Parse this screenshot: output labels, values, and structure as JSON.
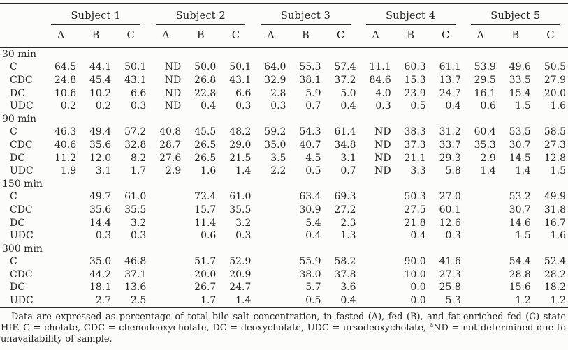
{
  "table": {
    "subjects": [
      "Subject 1",
      "Subject 2",
      "Subject 3",
      "Subject 4",
      "Subject 5"
    ],
    "conditions": [
      "A",
      "B",
      "C"
    ],
    "sections": [
      {
        "time": "30 min",
        "rows": [
          {
            "label": "C",
            "values": [
              "64.5",
              "44.1",
              "50.1",
              "ND",
              "50.0",
              "50.1",
              "64.0",
              "55.3",
              "57.4",
              "11.1",
              "60.3",
              "61.1",
              "53.9",
              "49.6",
              "50.5"
            ]
          },
          {
            "label": "CDC",
            "values": [
              "24.8",
              "45.4",
              "43.1",
              "ND",
              "26.8",
              "43.1",
              "32.9",
              "38.1",
              "37.2",
              "84.6",
              "15.3",
              "13.7",
              "29.5",
              "33.5",
              "27.9"
            ]
          },
          {
            "label": "DC",
            "values": [
              "10.6",
              "10.2",
              "6.6",
              "ND",
              "22.8",
              "6.6",
              "2.8",
              "5.9",
              "5.0",
              "4.0",
              "23.9",
              "24.7",
              "16.1",
              "15.4",
              "20.0"
            ]
          },
          {
            "label": "UDC",
            "values": [
              "0.2",
              "0.2",
              "0.3",
              "ND",
              "0.4",
              "0.3",
              "0.3",
              "0.7",
              "0.4",
              "0.3",
              "0.5",
              "0.4",
              "0.6",
              "1.5",
              "1.6"
            ]
          }
        ]
      },
      {
        "time": "90 min",
        "rows": [
          {
            "label": "C",
            "values": [
              "46.3",
              "49.4",
              "57.2",
              "40.8",
              "45.5",
              "48.2",
              "59.2",
              "54.3",
              "61.4",
              "ND",
              "38.3",
              "31.2",
              "60.4",
              "53.5",
              "58.5"
            ]
          },
          {
            "label": "CDC",
            "values": [
              "40.6",
              "35.6",
              "32.8",
              "28.7",
              "26.5",
              "29.0",
              "35.0",
              "40.7",
              "34.8",
              "ND",
              "37.3",
              "33.7",
              "35.3",
              "30.7",
              "27.3"
            ]
          },
          {
            "label": "DC",
            "values": [
              "11.2",
              "12.0",
              "8.2",
              "27.6",
              "26.5",
              "21.5",
              "3.5",
              "4.5",
              "3.1",
              "ND",
              "21.1",
              "29.3",
              "2.9",
              "14.5",
              "12.8"
            ]
          },
          {
            "label": "UDC",
            "values": [
              "1.9",
              "3.1",
              "1.7",
              "2.9",
              "1.6",
              "1.4",
              "2.2",
              "0.5",
              "0.7",
              "ND",
              "3.3",
              "5.8",
              "1.4",
              "1.4",
              "1.5"
            ]
          }
        ]
      },
      {
        "time": "150 min",
        "rows": [
          {
            "label": "C",
            "values": [
              "",
              "49.7",
              "61.0",
              "",
              "72.4",
              "61.0",
              "",
              "63.4",
              "69.3",
              "",
              "50.3",
              "27.0",
              "",
              "53.2",
              "49.9"
            ]
          },
          {
            "label": "CDC",
            "values": [
              "",
              "35.6",
              "35.5",
              "",
              "15.7",
              "35.5",
              "",
              "30.9",
              "27.2",
              "",
              "27.5",
              "60.1",
              "",
              "30.7",
              "31.8"
            ]
          },
          {
            "label": "DC",
            "values": [
              "",
              "14.4",
              "3.2",
              "",
              "11.4",
              "3.2",
              "",
              "5.4",
              "2.3",
              "",
              "21.8",
              "12.6",
              "",
              "14.6",
              "16.7"
            ]
          },
          {
            "label": "UDC",
            "values": [
              "",
              "0.3",
              "0.3",
              "",
              "0.6",
              "0.3",
              "",
              "0.4",
              "1.3",
              "",
              "0.4",
              "0.3",
              "",
              "1.5",
              "1.6"
            ]
          }
        ]
      },
      {
        "time": "300 min",
        "rows": [
          {
            "label": "C",
            "values": [
              "",
              "35.0",
              "46.8",
              "",
              "51.7",
              "52.9",
              "",
              "55.9",
              "58.2",
              "",
              "90.0",
              "41.6",
              "",
              "54.4",
              "52.4"
            ]
          },
          {
            "label": "CDC",
            "values": [
              "",
              "44.2",
              "37.1",
              "",
              "20.0",
              "20.9",
              "",
              "38.0",
              "37.8",
              "",
              "10.0",
              "27.3",
              "",
              "28.8",
              "28.2"
            ]
          },
          {
            "label": "DC",
            "values": [
              "",
              "18.1",
              "13.6",
              "",
              "26.7",
              "24.7",
              "",
              "5.7",
              "3.6",
              "",
              "0.0",
              "25.8",
              "",
              "15.6",
              "18.2"
            ]
          },
          {
            "label": "UDC",
            "values": [
              "",
              "2.7",
              "2.5",
              "",
              "1.7",
              "1.4",
              "",
              "0.5",
              "0.4",
              "",
              "0.0",
              "5.3",
              "",
              "1.2",
              "1.2"
            ]
          }
        ]
      }
    ]
  },
  "footnote": {
    "part1": "Data are expressed as percentage of total bile salt concentration, in fasted (A), fed (B), and fat-enriched fed (C) state HIF. C = cholate, CDC = chenodeoxycholate, DC = deoxycholate, UDC = ursodeoxycholate, ",
    "superscript": "a",
    "part2": "ND = not determined due to unavailability of sample."
  },
  "colors": {
    "text": "#242424",
    "rule": "#2a2a2a",
    "background": "#fcfcfa"
  }
}
